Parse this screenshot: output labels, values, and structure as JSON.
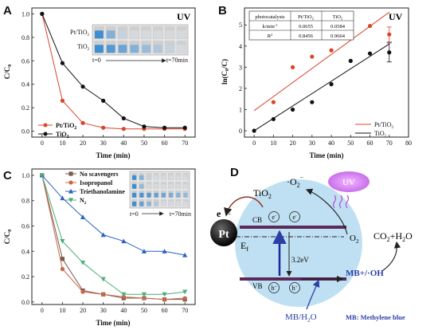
{
  "chart_data": [
    {
      "panel": "A",
      "type": "line",
      "annotation": "UV",
      "xlabel": "Time (min)",
      "ylabel": "C/C0",
      "xlim": [
        -5,
        75
      ],
      "ylim": [
        -0.05,
        1.05
      ],
      "xticks": [
        0,
        10,
        20,
        30,
        40,
        50,
        60,
        70
      ],
      "yticks": [
        0.0,
        0.2,
        0.4,
        0.6,
        0.8,
        1.0
      ],
      "inset": {
        "rows": [
          "Pt/TiO2",
          "TiO2"
        ],
        "start": "t=0",
        "end": "t=70min"
      },
      "legend_position": "bottom-right",
      "series": [
        {
          "name": "Pt/TiO2",
          "color": "#d9452b",
          "marker": "circle",
          "x": [
            0,
            10,
            20,
            30,
            40,
            50,
            60,
            70
          ],
          "y": [
            1.0,
            0.26,
            0.07,
            0.03,
            0.02,
            0.02,
            0.02,
            0.02
          ]
        },
        {
          "name": "TiO2",
          "color": "#111111",
          "marker": "circle",
          "x": [
            0,
            10,
            20,
            30,
            40,
            50,
            60,
            70
          ],
          "y": [
            1.0,
            0.58,
            0.38,
            0.26,
            0.11,
            0.04,
            0.03,
            0.03
          ]
        }
      ]
    },
    {
      "panel": "B",
      "type": "scatter",
      "annotation": "UV",
      "xlabel": "Time (min)",
      "ylabel": "ln(C0/C)",
      "xlim": [
        -5,
        80
      ],
      "ylim": [
        -0.3,
        5.8
      ],
      "xticks": [
        0,
        10,
        20,
        30,
        40,
        50,
        60,
        70,
        80
      ],
      "yticks": [
        0,
        1,
        2,
        3,
        4,
        5
      ],
      "table": {
        "headers": [
          "photocatalysts",
          "Pt/TiO2",
          "TiO2"
        ],
        "rows": [
          [
            "k/min-1",
            "0.0655",
            "0.0584"
          ],
          [
            "R2",
            "0.8456",
            "0.9664"
          ]
        ]
      },
      "legend_position": "bottom-right",
      "series": [
        {
          "name": "Pt/TiO2",
          "color": "#d9452b",
          "marker": "circle",
          "x": [
            10,
            20,
            30,
            40,
            50,
            60,
            70
          ],
          "y": [
            1.35,
            3.0,
            3.5,
            3.8,
            4.8,
            4.95,
            4.55
          ],
          "fit": {
            "x0": 0,
            "y0": 0.95,
            "x1": 70,
            "y1": 5.6
          }
        },
        {
          "name": "TiO2",
          "color": "#111111",
          "marker": "circle",
          "x": [
            0,
            10,
            20,
            30,
            40,
            50,
            60,
            70
          ],
          "y": [
            0,
            0.55,
            1.0,
            1.35,
            2.2,
            3.3,
            3.65,
            3.7
          ],
          "fit": {
            "x0": 0,
            "y0": 0,
            "x1": 70,
            "y1": 4.1
          }
        }
      ]
    },
    {
      "panel": "C",
      "type": "line",
      "xlabel": "Time (min)",
      "ylabel": "C/C0",
      "xlim": [
        -5,
        75
      ],
      "ylim": [
        -0.02,
        1.05
      ],
      "xticks": [
        0,
        10,
        20,
        30,
        40,
        50,
        60,
        70
      ],
      "yticks": [
        0.0,
        0.2,
        0.4,
        0.6,
        0.8,
        1.0
      ],
      "inset": {
        "start": "t=0",
        "end": "t=70min"
      },
      "legend_position": "top-center",
      "series": [
        {
          "name": "No scavengers",
          "color": "#7a5a4a",
          "marker": "square",
          "x": [
            0,
            10,
            20,
            30,
            40,
            50,
            60,
            70
          ],
          "y": [
            1.0,
            0.34,
            0.09,
            0.06,
            0.03,
            0.03,
            0.02,
            0.02
          ]
        },
        {
          "name": "Isopropanol",
          "color": "#c8674a",
          "marker": "circle",
          "x": [
            0,
            10,
            20,
            30,
            40,
            50,
            60,
            70
          ],
          "y": [
            1.0,
            0.26,
            0.08,
            0.06,
            0.04,
            0.03,
            0.02,
            0.03
          ]
        },
        {
          "name": "Triethanolamine",
          "color": "#2a5fc4",
          "marker": "triangle",
          "x": [
            0,
            10,
            20,
            30,
            40,
            50,
            60,
            70
          ],
          "y": [
            1.0,
            0.82,
            0.67,
            0.53,
            0.48,
            0.4,
            0.4,
            0.37
          ]
        },
        {
          "name": "N2",
          "color": "#4aae7a",
          "marker": "triangle-down",
          "x": [
            0,
            10,
            20,
            30,
            40,
            50,
            60,
            70
          ],
          "y": [
            1.0,
            0.48,
            0.31,
            0.18,
            0.06,
            0.06,
            0.06,
            0.08
          ]
        }
      ]
    }
  ],
  "diagram": {
    "panel": "D",
    "pt_label": "Pt",
    "electron_label": "e",
    "tio2_label": "TiO2",
    "cb_label": "CB",
    "vb_label": "VB",
    "ef_label": "Ef",
    "bandgap": "3.2eV",
    "e_symbol": "e",
    "h_symbol": "h",
    "uv_label": "UV",
    "superoxide": "·O2",
    "o2_label": "O2",
    "products": "CO2+H2O",
    "radicals": "MB+/·OH",
    "mb_h2o": "MB/H2O",
    "mb_note": "MB: Methylene blue"
  },
  "colors": {
    "pt_tio2": "#d9452b",
    "tio2": "#111111",
    "band": "#5a2a5a",
    "sphere": "#bfe0f2",
    "uv": "#b14bd9",
    "mb": "#2a3fa8"
  }
}
